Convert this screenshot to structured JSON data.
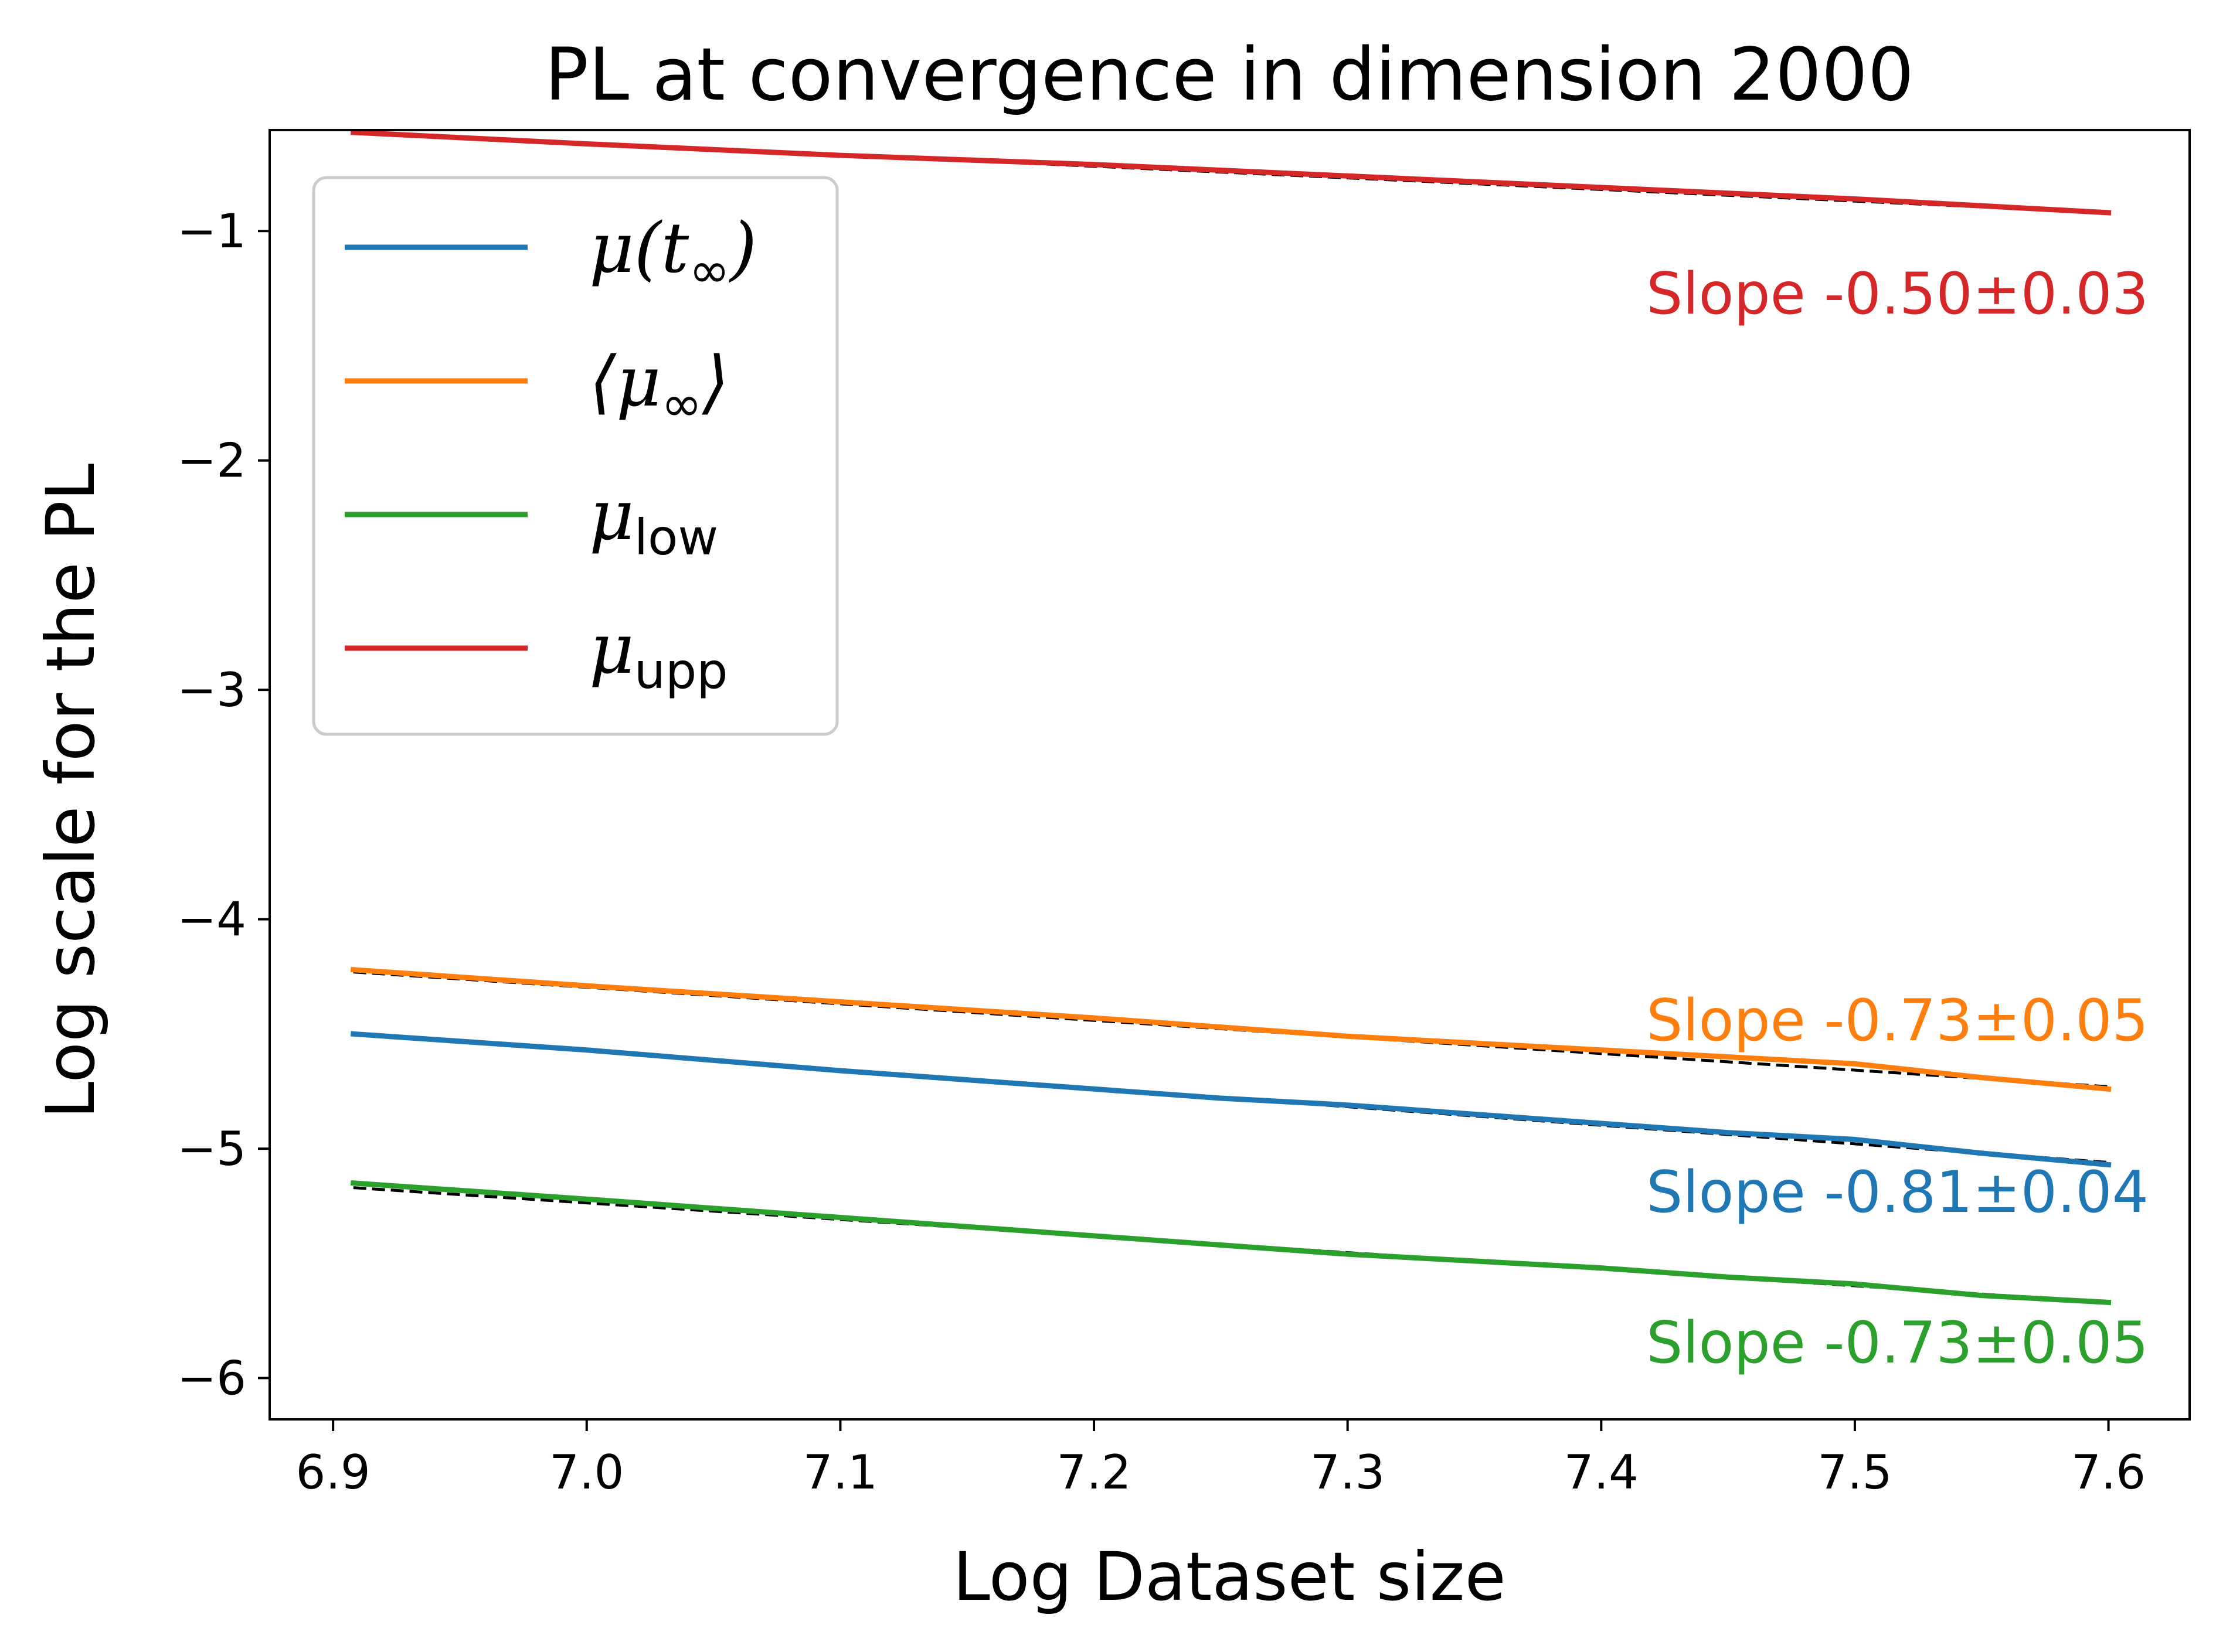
{
  "chart_data": {
    "type": "line",
    "title": "PL at convergence in dimension 2000",
    "xlabel": "Log Dataset size",
    "ylabel": "Log scale for the PL",
    "xlim": [
      6.875,
      7.632
    ],
    "ylim": [
      -6.18,
      -0.56
    ],
    "xticks": [
      6.9,
      7.0,
      7.1,
      7.2,
      7.3,
      7.4,
      7.5,
      7.6
    ],
    "xtick_labels": [
      "6.9",
      "7.0",
      "7.1",
      "7.2",
      "7.3",
      "7.4",
      "7.5",
      "7.6"
    ],
    "yticks": [
      -1,
      -2,
      -3,
      -4,
      -5,
      -6
    ],
    "ytick_labels": [
      "−1",
      "−2",
      "−3",
      "−4",
      "−5",
      "−6"
    ],
    "grid": false,
    "legend_position": "top-left",
    "series": [
      {
        "key": "mu_t",
        "legend": {
          "main": "μ(t",
          "sub": "∞",
          "close": ")"
        },
        "color": "#1f77b4",
        "x": [
          6.908,
          7.0,
          7.1,
          7.2,
          7.25,
          7.3,
          7.4,
          7.45,
          7.5,
          7.55,
          7.6
        ],
        "y": [
          -4.5,
          -4.57,
          -4.66,
          -4.74,
          -4.78,
          -4.81,
          -4.89,
          -4.93,
          -4.96,
          -5.02,
          -5.07
        ],
        "fit": [
          [
            6.908,
            -4.5
          ],
          [
            7.6,
            -5.06
          ]
        ],
        "slope_label": "Slope -0.81±0.04"
      },
      {
        "key": "mu_inf_avg",
        "legend": {
          "main": "⟨μ",
          "sub": "∞",
          "close": "⟩"
        },
        "color": "#ff7f0e",
        "x": [
          6.908,
          7.0,
          7.1,
          7.2,
          7.25,
          7.3,
          7.4,
          7.45,
          7.5,
          7.55,
          7.6
        ],
        "y": [
          -4.22,
          -4.29,
          -4.36,
          -4.43,
          -4.47,
          -4.51,
          -4.57,
          -4.6,
          -4.63,
          -4.69,
          -4.74
        ],
        "fit": [
          [
            6.908,
            -4.23
          ],
          [
            7.6,
            -4.73
          ]
        ],
        "slope_label": "Slope -0.73±0.05"
      },
      {
        "key": "mu_low",
        "legend": {
          "main": "μ",
          "sub": "low",
          "close": ""
        },
        "color": "#2ca02c",
        "x": [
          6.908,
          7.0,
          7.1,
          7.2,
          7.25,
          7.3,
          7.4,
          7.45,
          7.5,
          7.55,
          7.6
        ],
        "y": [
          -5.15,
          -5.22,
          -5.3,
          -5.38,
          -5.42,
          -5.46,
          -5.52,
          -5.56,
          -5.59,
          -5.64,
          -5.67
        ],
        "fit": [
          [
            6.908,
            -5.17
          ],
          [
            7.6,
            -5.67
          ]
        ],
        "slope_label": "Slope -0.73±0.05"
      },
      {
        "key": "mu_upp",
        "legend": {
          "main": "μ",
          "sub": "upp",
          "close": ""
        },
        "color": "#d62728",
        "x": [
          6.908,
          7.0,
          7.1,
          7.2,
          7.3,
          7.4,
          7.5,
          7.6
        ],
        "y": [
          -0.57,
          -0.62,
          -0.67,
          -0.71,
          -0.76,
          -0.81,
          -0.86,
          -0.92
        ],
        "fit": [
          [
            6.908,
            -0.57
          ],
          [
            7.6,
            -0.92
          ]
        ],
        "slope_label": "Slope -0.50±0.03"
      }
    ]
  }
}
